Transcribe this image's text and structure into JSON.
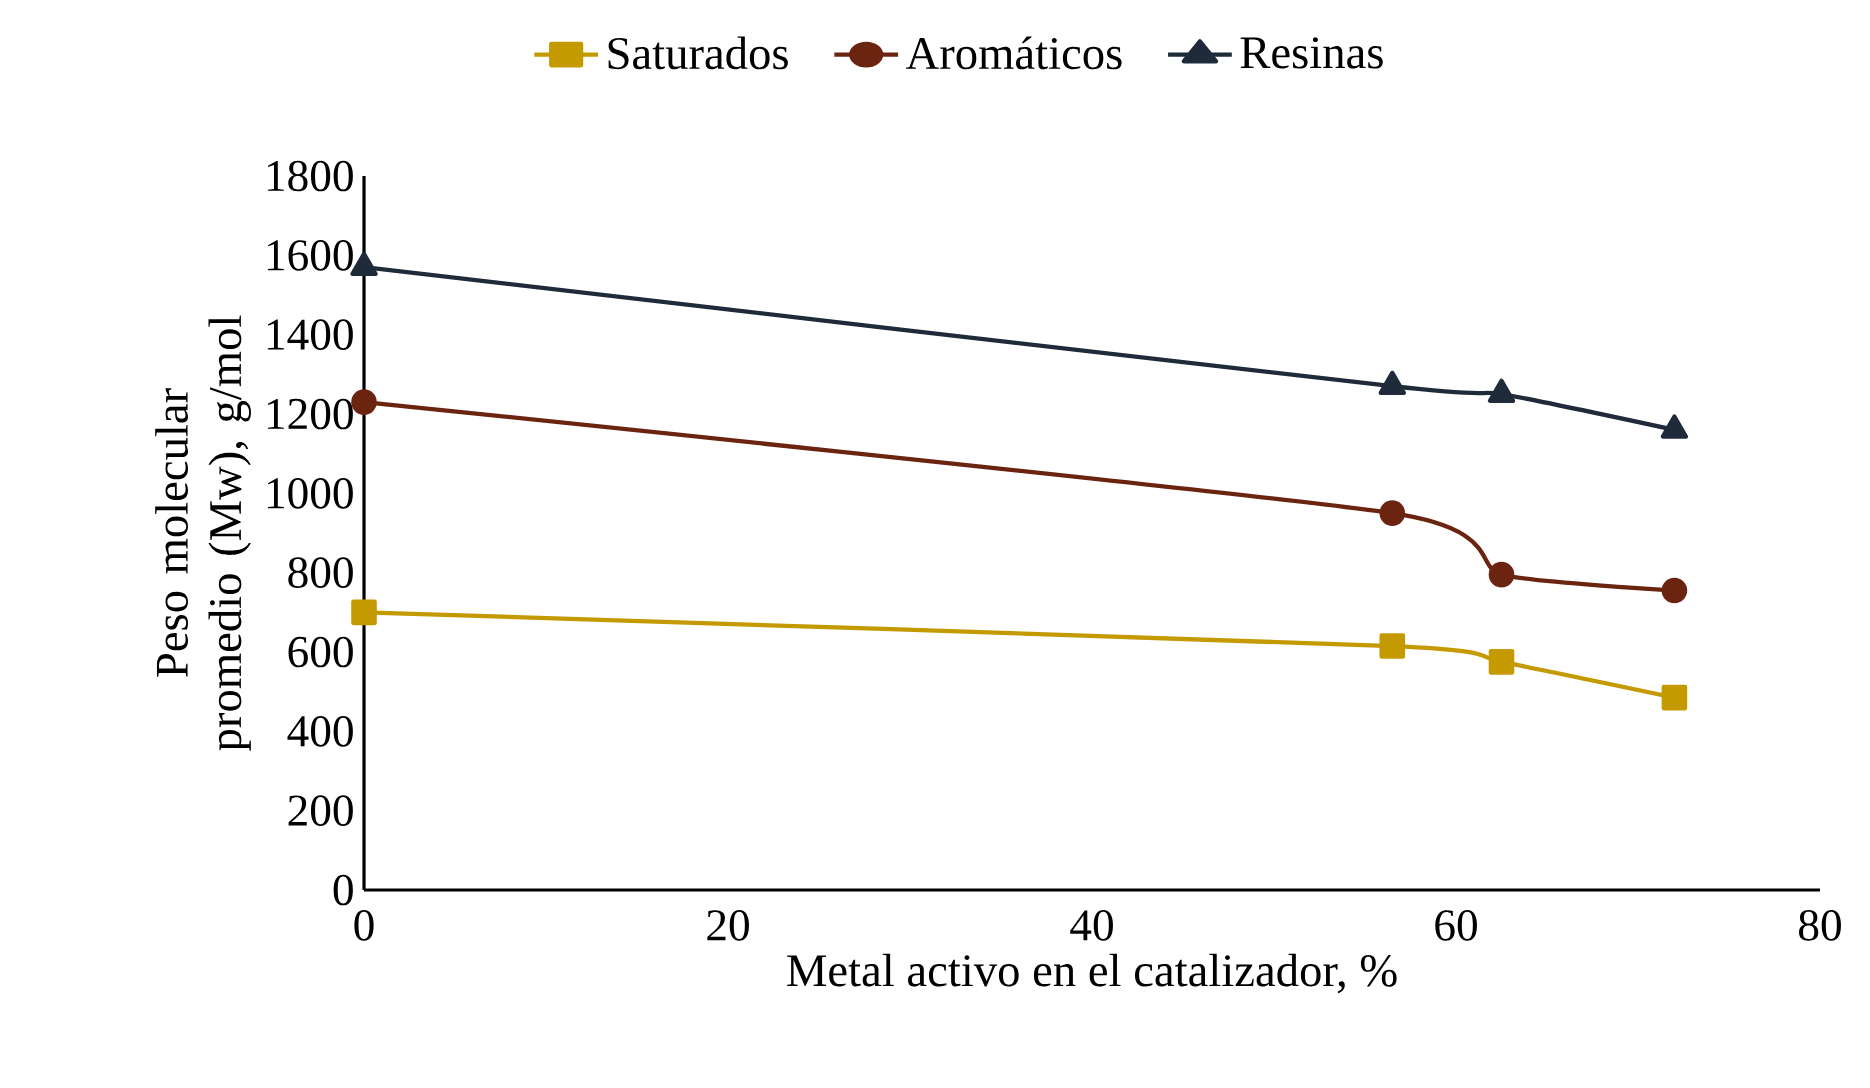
{
  "chart_data": {
    "type": "line",
    "xlabel": "Metal activo en el catalizador, %",
    "ylabel": "Peso molecular promedio (Mw), g/mol",
    "xlim": [
      0,
      80
    ],
    "xticks": [
      0,
      20,
      40,
      60,
      80
    ],
    "ylim": [
      0,
      1800
    ],
    "yticks": [
      0,
      200,
      400,
      600,
      800,
      1000,
      1200,
      1400,
      1600,
      1800
    ],
    "grid": false,
    "legend": "top",
    "line_style": "solid",
    "series": [
      {
        "name": "Saturados",
        "color": "#c49a00",
        "marker": "square",
        "x": [
          0,
          56.5,
          62.5,
          72
        ],
        "values": [
          700,
          615,
          575,
          485
        ]
      },
      {
        "name": "Aromáticos",
        "color": "#6b2410",
        "marker": "circle",
        "x": [
          0,
          56.5,
          62.5,
          72
        ],
        "values": [
          1230,
          950,
          795,
          755
        ]
      },
      {
        "name": "Resinas",
        "color": "#1f2a3a",
        "marker": "triangle",
        "x": [
          0,
          56.5,
          62.5,
          72
        ],
        "values": [
          1570,
          1270,
          1250,
          1160
        ]
      }
    ]
  }
}
